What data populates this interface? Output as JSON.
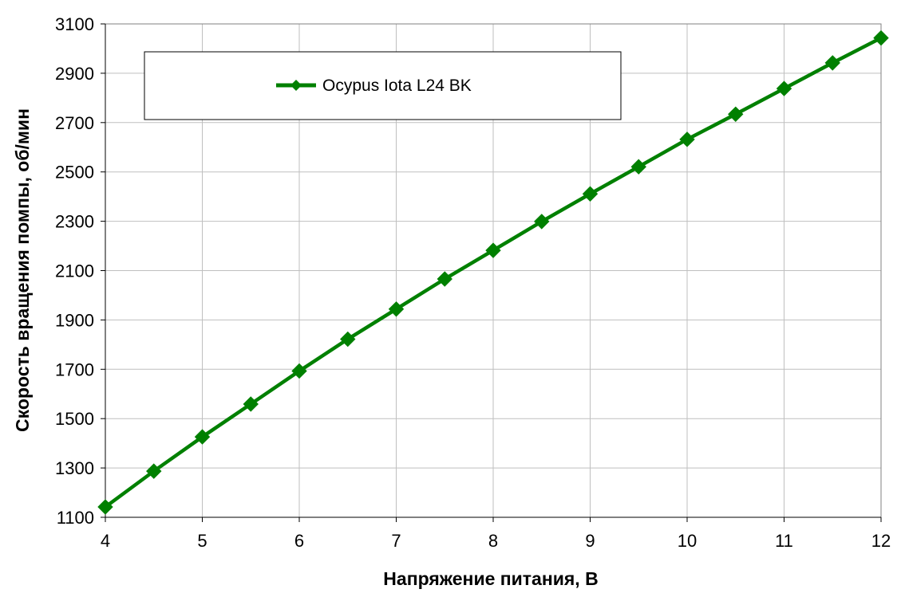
{
  "chart_data": {
    "type": "line",
    "title": "",
    "xlabel": "Напряжение питания, В",
    "ylabel": "Скорость вращения помпы, об/мин",
    "xlim": [
      4,
      12
    ],
    "ylim": [
      1100,
      3100
    ],
    "xticks": [
      4,
      5,
      6,
      7,
      8,
      9,
      10,
      11,
      12
    ],
    "yticks": [
      1100,
      1300,
      1500,
      1700,
      1900,
      2100,
      2300,
      2500,
      2700,
      2900,
      3100
    ],
    "grid": true,
    "legend_position": "top-left",
    "series": [
      {
        "name": "Ocypus Iota L24 BK",
        "color": "#008000",
        "marker": "diamond",
        "x": [
          4,
          4.5,
          5,
          5.5,
          6,
          6.5,
          7,
          7.5,
          8,
          8.5,
          9,
          9.5,
          10,
          10.5,
          11,
          11.5,
          12
        ],
        "y": [
          1142,
          1287,
          1426,
          1559,
          1693,
          1822,
          1944,
          2066,
          2182,
          2299,
          2411,
          2521,
          2632,
          2734,
          2838,
          2942,
          3043
        ]
      }
    ]
  }
}
